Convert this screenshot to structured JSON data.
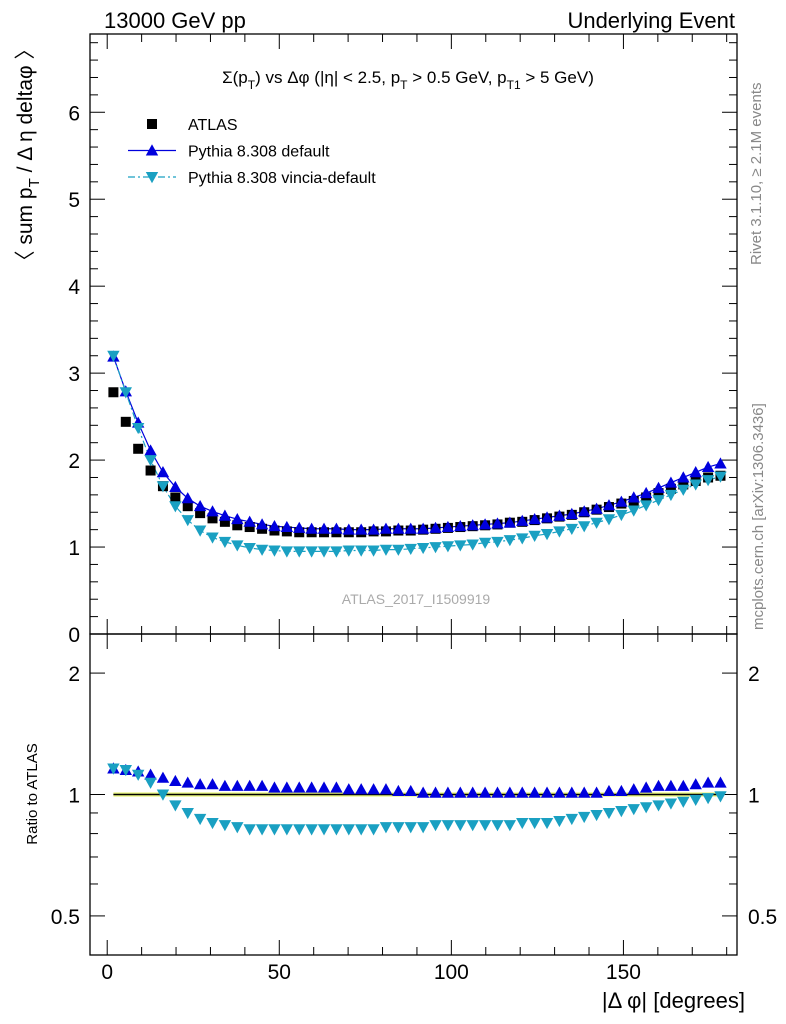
{
  "header": {
    "left": "13000 GeV pp",
    "right": "Underlying Event"
  },
  "side_labels": {
    "rivet": "Rivet 3.1.10, ≥ 2.1M events",
    "mcplots": "mcplots.cern.ch [arXiv:1306.3436]"
  },
  "watermark": "ATLAS_2017_I1509919",
  "chart_data": [
    {
      "type": "scatter",
      "title": "Σ(p_T) vs Δφ (|η| < 2.5, p_T > 0.5 GeV, p_T1 > 5 GeV)",
      "title_parts": {
        "a": "Σ(p",
        "a_sub": "T",
        "b": ") vs Δφ (|η| < 2.5, p",
        "b_sub": "T",
        "c": " > 0.5 GeV, p",
        "c_sub": "T1",
        "d": " > 5 GeV)"
      },
      "ylabel_parts": {
        "a": "〈 sum p",
        "a_sub": "T",
        "b": " / Δ η deltaφ 〉"
      },
      "xlim": [
        -5,
        183
      ],
      "ylim": [
        0,
        6.9
      ],
      "yticks": [
        0,
        1,
        2,
        3,
        4,
        5,
        6
      ],
      "legend_position": "top-left",
      "x": [
        1.8,
        5.4,
        9.0,
        12.6,
        16.2,
        19.8,
        23.4,
        27.0,
        30.6,
        34.2,
        37.8,
        41.4,
        45.0,
        48.6,
        52.2,
        55.8,
        59.4,
        63.0,
        66.6,
        70.2,
        73.8,
        77.4,
        81.0,
        84.6,
        88.2,
        91.8,
        95.4,
        99.0,
        102.6,
        106.2,
        109.8,
        113.4,
        117.0,
        120.6,
        124.2,
        127.8,
        131.4,
        135.0,
        138.6,
        142.2,
        145.8,
        149.4,
        153.0,
        156.6,
        160.2,
        163.8,
        167.4,
        171.0,
        174.6,
        178.2
      ],
      "series": [
        {
          "name": "ATLAS",
          "color": "#000000",
          "marker": "square",
          "values": [
            2.78,
            2.44,
            2.13,
            1.88,
            1.7,
            1.57,
            1.47,
            1.39,
            1.33,
            1.29,
            1.25,
            1.23,
            1.21,
            1.19,
            1.18,
            1.17,
            1.17,
            1.17,
            1.17,
            1.17,
            1.17,
            1.18,
            1.18,
            1.19,
            1.19,
            1.2,
            1.21,
            1.22,
            1.23,
            1.24,
            1.25,
            1.26,
            1.28,
            1.29,
            1.31,
            1.33,
            1.35,
            1.37,
            1.4,
            1.43,
            1.46,
            1.5,
            1.53,
            1.57,
            1.62,
            1.67,
            1.72,
            1.76,
            1.8,
            1.82
          ]
        },
        {
          "name": "Pythia 8.308 default",
          "color": "#0000dd",
          "marker": "triangle-up",
          "line": "solid",
          "values": [
            3.19,
            2.79,
            2.43,
            2.11,
            1.86,
            1.69,
            1.56,
            1.47,
            1.41,
            1.36,
            1.32,
            1.29,
            1.26,
            1.24,
            1.23,
            1.22,
            1.21,
            1.21,
            1.21,
            1.2,
            1.2,
            1.2,
            1.21,
            1.21,
            1.21,
            1.21,
            1.22,
            1.23,
            1.24,
            1.25,
            1.26,
            1.27,
            1.28,
            1.3,
            1.32,
            1.34,
            1.36,
            1.38,
            1.41,
            1.44,
            1.48,
            1.52,
            1.57,
            1.62,
            1.68,
            1.74,
            1.8,
            1.86,
            1.92,
            1.96
          ]
        },
        {
          "name": "Pythia 8.308 vincia-default",
          "color": "#1aa0c2",
          "marker": "triangle-down",
          "line": "dash-dot",
          "values": [
            3.2,
            2.78,
            2.37,
            2.0,
            1.7,
            1.47,
            1.31,
            1.19,
            1.11,
            1.06,
            1.02,
            0.99,
            0.97,
            0.96,
            0.95,
            0.95,
            0.95,
            0.95,
            0.95,
            0.96,
            0.96,
            0.96,
            0.97,
            0.97,
            0.98,
            0.99,
            1.0,
            1.01,
            1.02,
            1.03,
            1.05,
            1.06,
            1.08,
            1.1,
            1.13,
            1.15,
            1.18,
            1.21,
            1.24,
            1.28,
            1.32,
            1.37,
            1.42,
            1.48,
            1.54,
            1.6,
            1.66,
            1.72,
            1.77,
            1.81
          ]
        }
      ]
    },
    {
      "type": "scatter",
      "xlabel": "|Δ φ| [degrees]",
      "ylabel": "Ratio to ATLAS",
      "xlim": [
        -5,
        183
      ],
      "ylim": [
        0.4,
        2.5
      ],
      "y_scale": "log",
      "xticks": [
        0,
        50,
        100,
        150
      ],
      "yticks": [
        0.5,
        1,
        2
      ],
      "reference_band_color": "#e8f57a",
      "series": [
        {
          "name": "Pythia 8.308 default",
          "color": "#0000dd",
          "marker": "triangle-up",
          "values": [
            1.16,
            1.15,
            1.14,
            1.12,
            1.1,
            1.08,
            1.07,
            1.06,
            1.06,
            1.05,
            1.05,
            1.05,
            1.05,
            1.04,
            1.04,
            1.04,
            1.04,
            1.04,
            1.04,
            1.03,
            1.03,
            1.03,
            1.03,
            1.02,
            1.02,
            1.01,
            1.01,
            1.01,
            1.01,
            1.01,
            1.01,
            1.01,
            1.01,
            1.01,
            1.01,
            1.01,
            1.01,
            1.01,
            1.01,
            1.01,
            1.02,
            1.02,
            1.03,
            1.04,
            1.05,
            1.05,
            1.05,
            1.06,
            1.07,
            1.07
          ]
        },
        {
          "name": "Pythia 8.308 vincia-default",
          "color": "#1aa0c2",
          "marker": "triangle-down",
          "values": [
            1.16,
            1.15,
            1.12,
            1.07,
            1.0,
            0.94,
            0.9,
            0.87,
            0.85,
            0.84,
            0.83,
            0.82,
            0.82,
            0.82,
            0.82,
            0.82,
            0.82,
            0.82,
            0.82,
            0.82,
            0.82,
            0.82,
            0.83,
            0.83,
            0.83,
            0.83,
            0.84,
            0.84,
            0.84,
            0.84,
            0.84,
            0.84,
            0.84,
            0.85,
            0.85,
            0.85,
            0.86,
            0.87,
            0.88,
            0.89,
            0.9,
            0.91,
            0.92,
            0.93,
            0.94,
            0.95,
            0.96,
            0.97,
            0.98,
            0.99
          ]
        }
      ]
    }
  ]
}
